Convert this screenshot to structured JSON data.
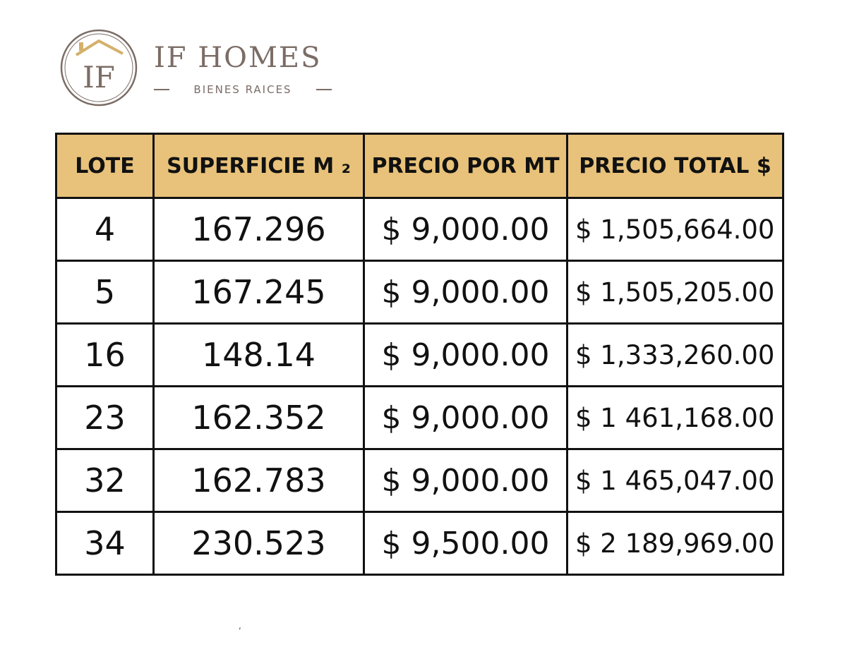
{
  "brand": {
    "logo_letters": "IF",
    "name": "IF HOMES",
    "tagline": "BIENES RAICES",
    "colors": {
      "text": "#7b6d66",
      "roof": "#d4b06a",
      "ring": "#7b6d66"
    },
    "icon": "house-roof-icon"
  },
  "table": {
    "header_color": "#e8c27a",
    "headers": [
      "LOTE",
      "SUPERFICIE M ₂",
      "PRECIO POR MT",
      "PRECIO TOTAL $"
    ],
    "rows": [
      {
        "lote": "4",
        "superficie": "167.296",
        "precio_mt": "$ 9,000.00",
        "precio_total": "$ 1,505,664.00"
      },
      {
        "lote": "5",
        "superficie": "167.245",
        "precio_mt": "$ 9,000.00",
        "precio_total": "$ 1,505,205.00"
      },
      {
        "lote": "16",
        "superficie": "148.14",
        "precio_mt": "$ 9,000.00",
        "precio_total": "$ 1,333,260.00"
      },
      {
        "lote": "23",
        "superficie": "162.352",
        "precio_mt": "$ 9,000.00",
        "precio_total": "$ 1 461,168.00"
      },
      {
        "lote": "32",
        "superficie": "162.783",
        "precio_mt": "$ 9,000.00",
        "precio_total": "$ 1 465,047.00"
      },
      {
        "lote": "34",
        "superficie": "230.523",
        "precio_mt": "$ 9,500.00",
        "precio_total": "$ 2 189,969.00"
      }
    ]
  },
  "stray_mark": ","
}
